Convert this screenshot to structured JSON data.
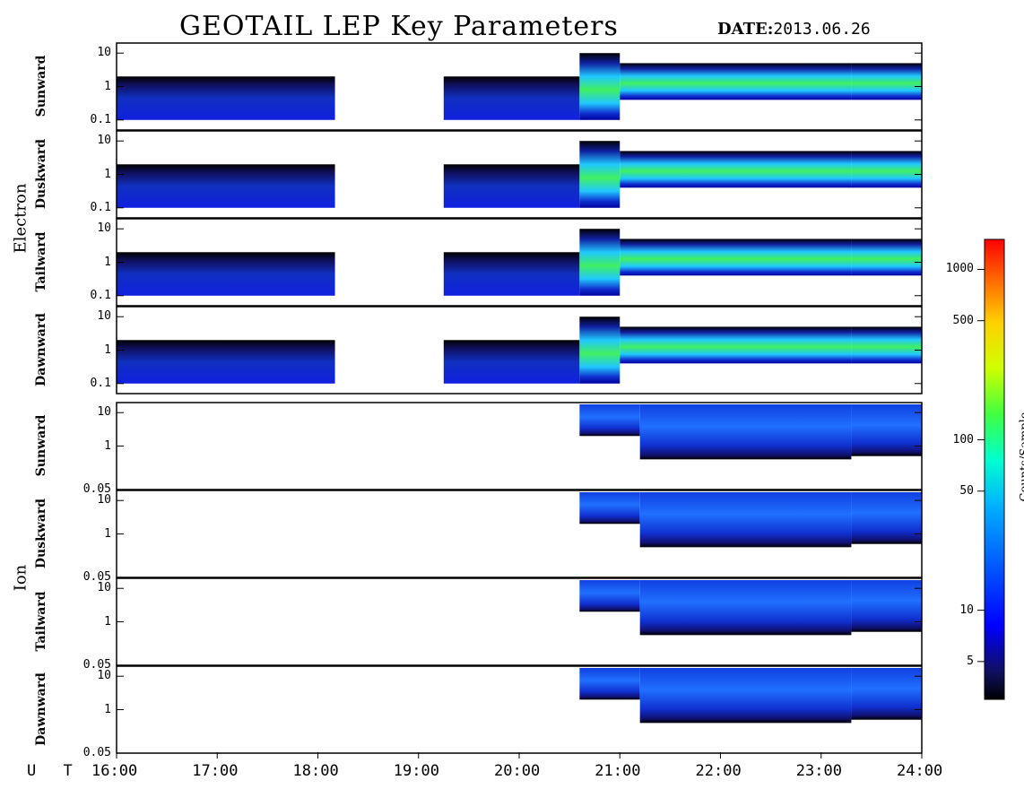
{
  "title": "GEOTAIL LEP Key Parameters",
  "date_key": "DATE:",
  "date_value": "2013.06.26",
  "x_axis": {
    "label": "U T",
    "ticks": [
      "16:00",
      "17:00",
      "18:00",
      "19:00",
      "20:00",
      "21:00",
      "22:00",
      "23:00",
      "24:00"
    ]
  },
  "colorbar": {
    "label": "Counts/Sample",
    "ticks": [
      "1000",
      "500",
      "100",
      "50",
      "10",
      "5"
    ],
    "colors": [
      "#000000",
      "#101060",
      "#0000ff",
      "#0060ff",
      "#00b0ff",
      "#00ffd0",
      "#40ff40",
      "#d0ff00",
      "#ffd000",
      "#ff6000",
      "#ff0000"
    ]
  },
  "groups": [
    {
      "name": "Electron",
      "yticks": [
        "10",
        "1",
        "0.1"
      ],
      "panels": [
        "Sunward",
        "Duskward",
        "Tailward",
        "Dawnward"
      ]
    },
    {
      "name": "Ion",
      "yticks": [
        "10",
        "1",
        "0.05"
      ],
      "panels": [
        "Sunward",
        "Duskward",
        "Tailward",
        "Dawnward"
      ]
    }
  ],
  "chart_data": {
    "type": "heatmap",
    "title": "GEOTAIL LEP Key Parameters",
    "date": "2013.06.26",
    "x_unit": "UT hours",
    "xlim": [
      16,
      24
    ],
    "colorbar_label": "Counts/Sample",
    "colorbar_scale": "log",
    "electron": {
      "ylim": [
        0.05,
        20
      ],
      "yscale": "log",
      "data_gap": [
        18.17,
        19.25
      ],
      "bands": [
        {
          "x": [
            16.0,
            18.17
          ],
          "y": [
            0.1,
            2
          ],
          "level": "low"
        },
        {
          "x": [
            19.25,
            20.6
          ],
          "y": [
            0.1,
            2
          ],
          "level": "low"
        },
        {
          "x": [
            20.6,
            21.0
          ],
          "y": [
            0.1,
            10
          ],
          "level": "medium"
        },
        {
          "x": [
            21.0,
            23.3
          ],
          "y": [
            0.4,
            5
          ],
          "level": "high"
        },
        {
          "x": [
            23.3,
            24.0
          ],
          "y": [
            0.4,
            5
          ],
          "level": "high"
        }
      ]
    },
    "ion": {
      "ylim": [
        0.05,
        20
      ],
      "yscale": "log",
      "onset": 20.6,
      "bands": [
        {
          "x": [
            20.6,
            21.2
          ],
          "y": [
            2,
            20
          ],
          "level": "medium"
        },
        {
          "x": [
            21.2,
            23.3
          ],
          "y": [
            0.4,
            20
          ],
          "level": "low-medium"
        },
        {
          "x": [
            23.3,
            24.0
          ],
          "y": [
            0.5,
            20
          ],
          "level": "low-medium"
        }
      ]
    }
  }
}
